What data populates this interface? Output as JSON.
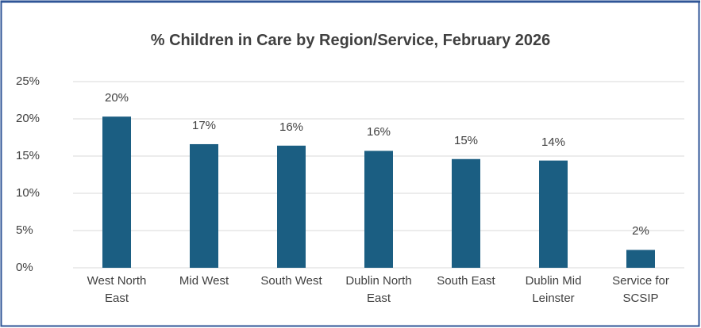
{
  "chart_data": {
    "type": "bar",
    "title": "% Children in Care by Region/Service, February 2026",
    "categories": [
      "West North East",
      "Mid West",
      "South West",
      "Dublin North East",
      "South East",
      "Dublin Mid Leinster",
      "Service for SCSIP"
    ],
    "values": [
      20.3,
      16.6,
      16.4,
      15.7,
      14.6,
      14.4,
      2.4
    ],
    "value_labels": [
      "20%",
      "17%",
      "16%",
      "16%",
      "15%",
      "14%",
      "2%"
    ],
    "color": "#1b5e82",
    "ylim": [
      0,
      25
    ],
    "yticks": [
      {
        "value": 0,
        "label": "0%"
      },
      {
        "value": 5,
        "label": "5%"
      },
      {
        "value": 10,
        "label": "10%"
      },
      {
        "value": 15,
        "label": "15%"
      },
      {
        "value": 20,
        "label": "20%"
      },
      {
        "value": 25,
        "label": "25%"
      }
    ],
    "grid": true
  }
}
